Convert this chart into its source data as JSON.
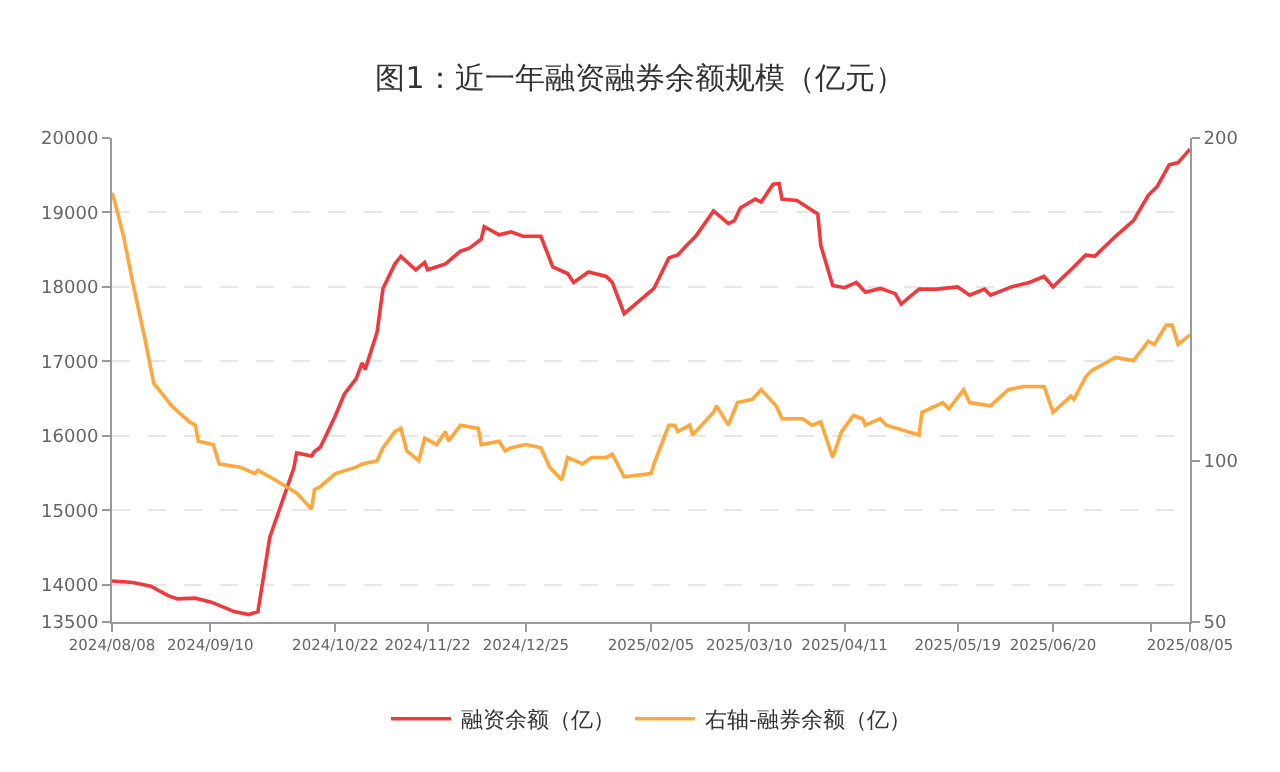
{
  "chart_data": {
    "type": "line",
    "title": "图1：近一年融资融券余额规模（亿元）",
    "legend": "bottom",
    "grid": "y",
    "marker": "none",
    "line_style": "solid",
    "xlim": [
      "2024-08-08",
      "2025-08-05"
    ],
    "xticks": [
      {
        "value": "2024-08-08",
        "label": "2024/08/08"
      },
      {
        "value": "2024-09-10",
        "label": "2024/09/10"
      },
      {
        "value": "2024-10-22",
        "label": "2024/10/22"
      },
      {
        "value": "2024-11-22",
        "label": "2024/11/22"
      },
      {
        "value": "2024-12-25",
        "label": "2024/12/25"
      },
      {
        "value": "2025-02-05",
        "label": "2025/02/05"
      },
      {
        "value": "2025-03-10",
        "label": "2025/03/10"
      },
      {
        "value": "2025-04-11",
        "label": "2025/04/11"
      },
      {
        "value": "2025-05-19",
        "label": "2025/05/19"
      },
      {
        "value": "2025-06-20",
        "label": "2025/06/20"
      },
      {
        "value": "2025-07-23",
        "label": null
      },
      {
        "value": "2025-08-05",
        "label": "2025/08/05"
      }
    ],
    "ylim": [
      13500,
      20000
    ],
    "yticks": [
      13500,
      14000,
      15000,
      16000,
      17000,
      18000,
      19000,
      20000
    ],
    "y2lim": [
      50,
      200
    ],
    "y2ticks": [
      50,
      100,
      200
    ],
    "series": [
      {
        "name": "融资余额（亿）",
        "color": "#f2383c",
        "x": [
          "2024-08-08",
          "2024-08-15",
          "2024-08-21",
          "2024-08-27",
          "2024-08-30",
          "2024-09-05",
          "2024-09-10",
          "2024-09-12",
          "2024-09-18",
          "2024-09-23",
          "2024-09-26",
          "2024-09-27",
          "2024-09-30",
          "2024-10-08",
          "2024-10-09",
          "2024-10-14",
          "2024-10-15",
          "2024-10-17",
          "2024-10-22",
          "2024-10-25",
          "2024-10-29",
          "2024-10-31",
          "2024-11-01",
          "2024-11-05",
          "2024-11-07",
          "2024-11-11",
          "2024-11-13",
          "2024-11-18",
          "2024-11-21",
          "2024-11-22",
          "2024-11-28",
          "2024-12-03",
          "2024-12-06",
          "2024-12-10",
          "2024-12-11",
          "2024-12-16",
          "2024-12-20",
          "2024-12-24",
          "2024-12-30",
          "2025-01-03",
          "2025-01-08",
          "2025-01-10",
          "2025-01-15",
          "2025-01-21",
          "2025-01-23",
          "2025-01-27",
          "2025-02-06",
          "2025-02-11",
          "2025-02-14",
          "2025-02-17",
          "2025-02-20",
          "2025-02-26",
          "2025-03-03",
          "2025-03-05",
          "2025-03-07",
          "2025-03-12",
          "2025-03-14",
          "2025-03-18",
          "2025-03-20",
          "2025-03-21",
          "2025-03-26",
          "2025-04-02",
          "2025-04-03",
          "2025-04-07",
          "2025-04-11",
          "2025-04-15",
          "2025-04-18",
          "2025-04-23",
          "2025-04-28",
          "2025-04-30",
          "2025-05-06",
          "2025-05-12",
          "2025-05-19",
          "2025-05-23",
          "2025-05-28",
          "2025-05-30",
          "2025-06-06",
          "2025-06-12",
          "2025-06-17",
          "2025-06-20",
          "2025-06-26",
          "2025-07-01",
          "2025-07-04",
          "2025-07-11",
          "2025-07-17",
          "2025-07-22",
          "2025-07-25",
          "2025-07-29",
          "2025-08-01",
          "2025-08-05"
        ],
        "values": [
          14050,
          14030,
          13980,
          13850,
          13810,
          13820,
          13770,
          13740,
          13640,
          13600,
          13640,
          13890,
          14640,
          15560,
          15770,
          15730,
          15790,
          15850,
          16270,
          16560,
          16770,
          16980,
          16890,
          17390,
          17980,
          18310,
          18410,
          18230,
          18330,
          18230,
          18310,
          18480,
          18520,
          18640,
          18810,
          18700,
          18740,
          18680,
          18680,
          18270,
          18180,
          18060,
          18200,
          18140,
          18060,
          17640,
          17980,
          18390,
          18430,
          18560,
          18680,
          19020,
          18850,
          18890,
          19060,
          19180,
          19140,
          19380,
          19390,
          19180,
          19160,
          18980,
          18560,
          18020,
          17990,
          18060,
          17930,
          17980,
          17910,
          17770,
          17970,
          17970,
          18000,
          17890,
          17970,
          17890,
          18000,
          18060,
          18140,
          18000,
          18230,
          18430,
          18410,
          18680,
          18890,
          19230,
          19350,
          19640,
          19670,
          19850
        ]
      },
      {
        "name": "右轴-融券余额（亿）",
        "color": "#ffa73c",
        "axis": "y2",
        "x": [
          "2024-08-08",
          "2024-08-09",
          "2024-08-12",
          "2024-08-15",
          "2024-08-19",
          "2024-08-22",
          "2024-08-28",
          "2024-09-03",
          "2024-09-05",
          "2024-09-06",
          "2024-09-11",
          "2024-09-13",
          "2024-09-20",
          "2024-09-25",
          "2024-09-26",
          "2024-09-30",
          "2024-10-09",
          "2024-10-11",
          "2024-10-14",
          "2024-10-15",
          "2024-10-17",
          "2024-10-22",
          "2024-10-29",
          "2024-10-31",
          "2024-11-05",
          "2024-11-07",
          "2024-11-11",
          "2024-11-13",
          "2024-11-15",
          "2024-11-19",
          "2024-11-21",
          "2024-11-25",
          "2024-11-28",
          "2024-11-29",
          "2024-12-03",
          "2024-12-09",
          "2024-12-10",
          "2024-12-16",
          "2024-12-18",
          "2024-12-20",
          "2024-12-25",
          "2024-12-30",
          "2025-01-02",
          "2025-01-06",
          "2025-01-08",
          "2025-01-13",
          "2025-01-16",
          "2025-01-21",
          "2025-01-23",
          "2025-01-27",
          "2025-02-05",
          "2025-02-06",
          "2025-02-11",
          "2025-02-13",
          "2025-02-14",
          "2025-02-18",
          "2025-02-19",
          "2025-02-26",
          "2025-02-27",
          "2025-03-03",
          "2025-03-06",
          "2025-03-11",
          "2025-03-14",
          "2025-03-19",
          "2025-03-21",
          "2025-03-28",
          "2025-03-31",
          "2025-04-03",
          "2025-04-07",
          "2025-04-10",
          "2025-04-14",
          "2025-04-17",
          "2025-04-18",
          "2025-04-23",
          "2025-04-25",
          "2025-05-06",
          "2025-05-07",
          "2025-05-14",
          "2025-05-16",
          "2025-05-21",
          "2025-05-23",
          "2025-05-30",
          "2025-06-05",
          "2025-06-10",
          "2025-06-17",
          "2025-06-20",
          "2025-06-26",
          "2025-06-27",
          "2025-07-01",
          "2025-07-03",
          "2025-07-11",
          "2025-07-17",
          "2025-07-22",
          "2025-07-24",
          "2025-07-28",
          "2025-07-30",
          "2025-08-01",
          "2025-08-05"
        ],
        "values": [
          183,
          180,
          169,
          155,
          138,
          124,
          117,
          112,
          111,
          106,
          105,
          99,
          98,
          96,
          97,
          95,
          90,
          88,
          85,
          91,
          92,
          96,
          98,
          99,
          100,
          104,
          109,
          110,
          103,
          100,
          107,
          105,
          109,
          106,
          111,
          110,
          105,
          106,
          103,
          104,
          105,
          104,
          98,
          94,
          101,
          99,
          101,
          101,
          102,
          95,
          96,
          99,
          111,
          111,
          109,
          111,
          108,
          115,
          117,
          111,
          118,
          119,
          122,
          117,
          113,
          113,
          111,
          112,
          101,
          109,
          114,
          113,
          111,
          113,
          111,
          108,
          115,
          118,
          116,
          122,
          118,
          117,
          122,
          123,
          123,
          115,
          120,
          119,
          126,
          128,
          132,
          131,
          137,
          136,
          142,
          142,
          136,
          139
        ]
      }
    ]
  }
}
